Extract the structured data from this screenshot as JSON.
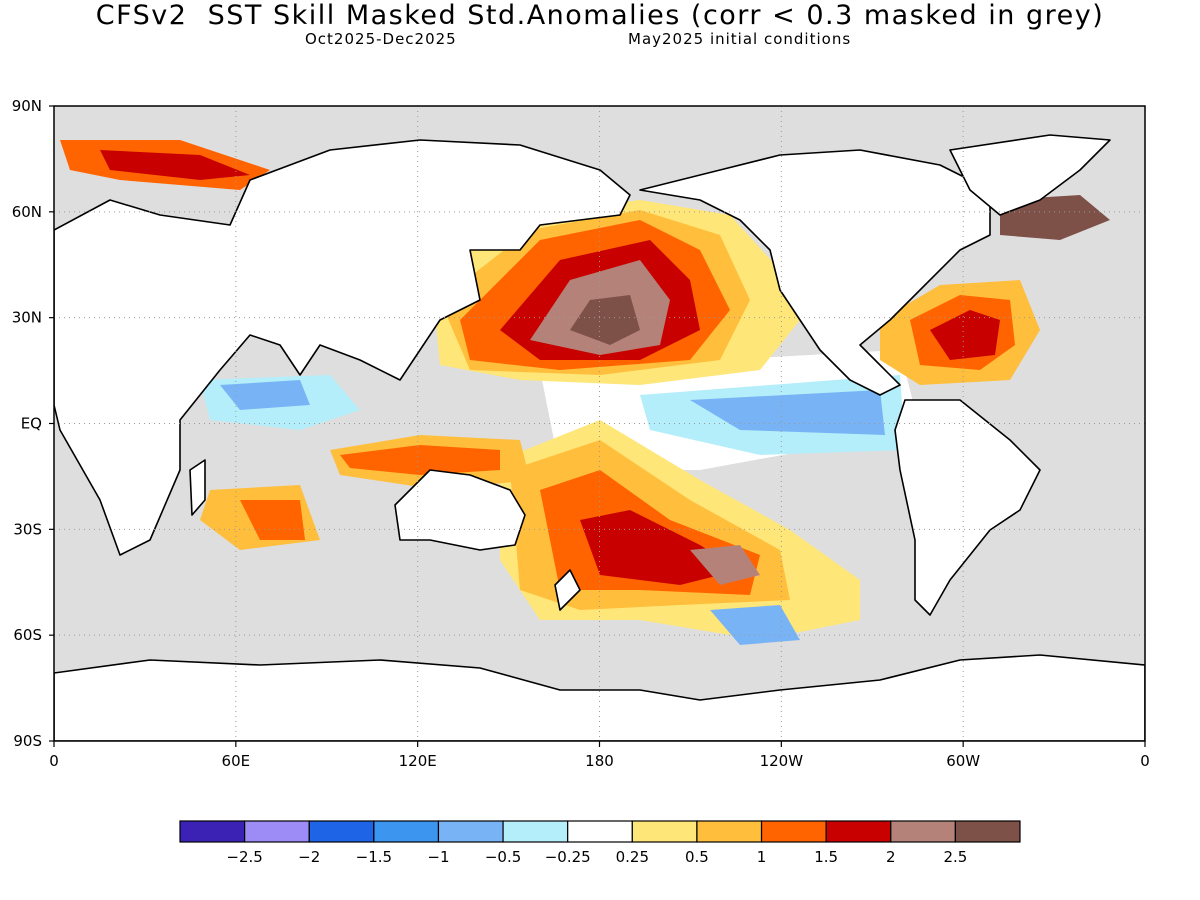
{
  "title": "CFSv2  SST Skill Masked Std.Anomalies (corr < 0.3 masked in grey)",
  "period": "Oct2025-Dec2025",
  "initial_conditions": "May2025 initial conditions",
  "lat_ticks": [
    "90N",
    "60N",
    "30N",
    "EQ",
    "30S",
    "60S",
    "90S"
  ],
  "lon_ticks": [
    "0",
    "60E",
    "120E",
    "180",
    "120W",
    "60W",
    "0"
  ],
  "colorbar": {
    "colors": [
      "#3b22b4",
      "#9d8cf5",
      "#1e64e6",
      "#3c96f0",
      "#78b4f5",
      "#b4eefa",
      "#ffffff",
      "#ffe678",
      "#ffbe3c",
      "#ff6400",
      "#c80000",
      "#b48278",
      "#7d5048"
    ],
    "labels": [
      "-2.5",
      "-2",
      "-1.5",
      "-1",
      "-0.5",
      "-0.25",
      "0.25",
      "0.5",
      "1",
      "1.5",
      "2",
      "2.5"
    ]
  },
  "colors": {
    "mask": "#dedede",
    "land": "#ffffff",
    "coast": "#000000"
  }
}
